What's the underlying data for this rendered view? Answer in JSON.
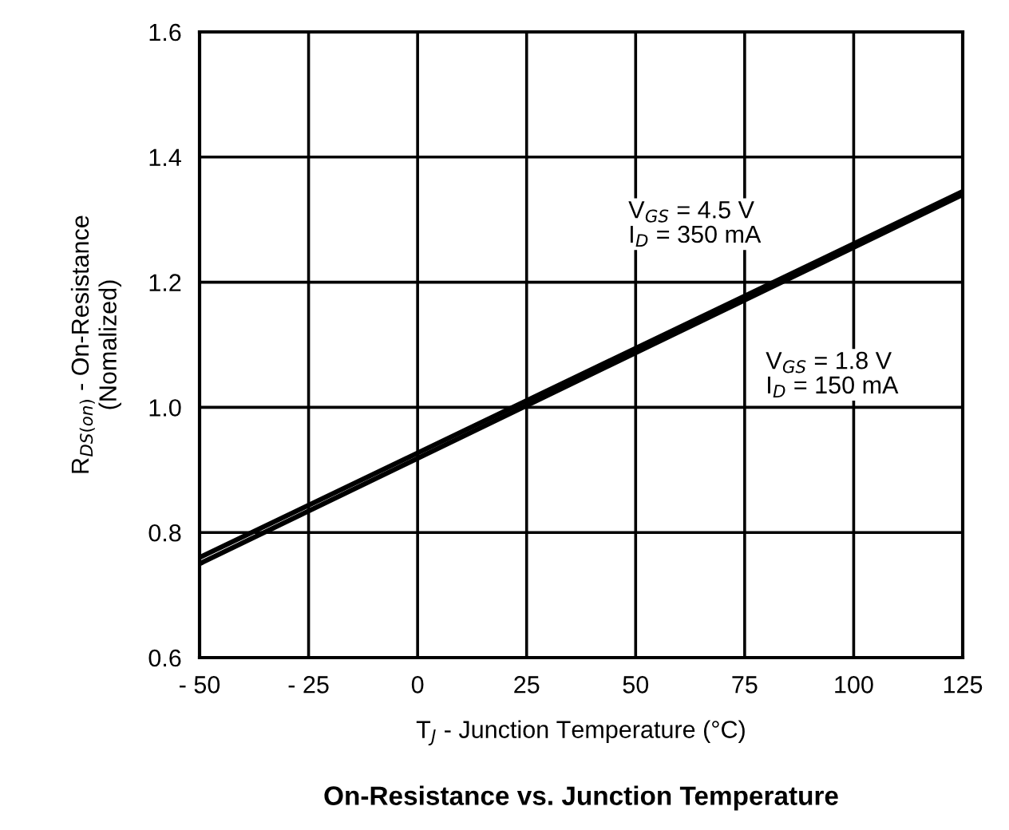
{
  "chart_data": {
    "type": "line",
    "title": "On-Resistance vs. Junction Temperature",
    "xlabel": "T$_{J}$ - Junction Temperature (°C)",
    "ylabel": "R$_{DS(on)}$ - On-Resistance\n(Nomalized)",
    "series": [
      {
        "name": "V$_{GS}$ = 4.5 V\nI$_{D}$ = 350 mA",
        "color": "#000000",
        "values": [
          0.76,
          1.345
        ]
      },
      {
        "name": "V$_{GS}$ = 1.8 V\nI$_{D}$ = 150 mA",
        "color": "#000000",
        "values": [
          0.75,
          1.34
        ]
      }
    ],
    "x": [
      -50,
      125
    ],
    "xlim": [
      -50,
      125
    ],
    "xticks": [
      {
        "value": -50,
        "label": "- 50"
      },
      {
        "value": -25,
        "label": "- 25"
      },
      0,
      25,
      50,
      75,
      100,
      125
    ],
    "ylim": [
      0.6,
      1.6
    ],
    "yticks": [
      0.6,
      0.8,
      {
        "value": 1,
        "label": "1.0"
      },
      1.2,
      1.4,
      1.6
    ],
    "grid": true,
    "marker": "none",
    "line_style": "solid"
  }
}
